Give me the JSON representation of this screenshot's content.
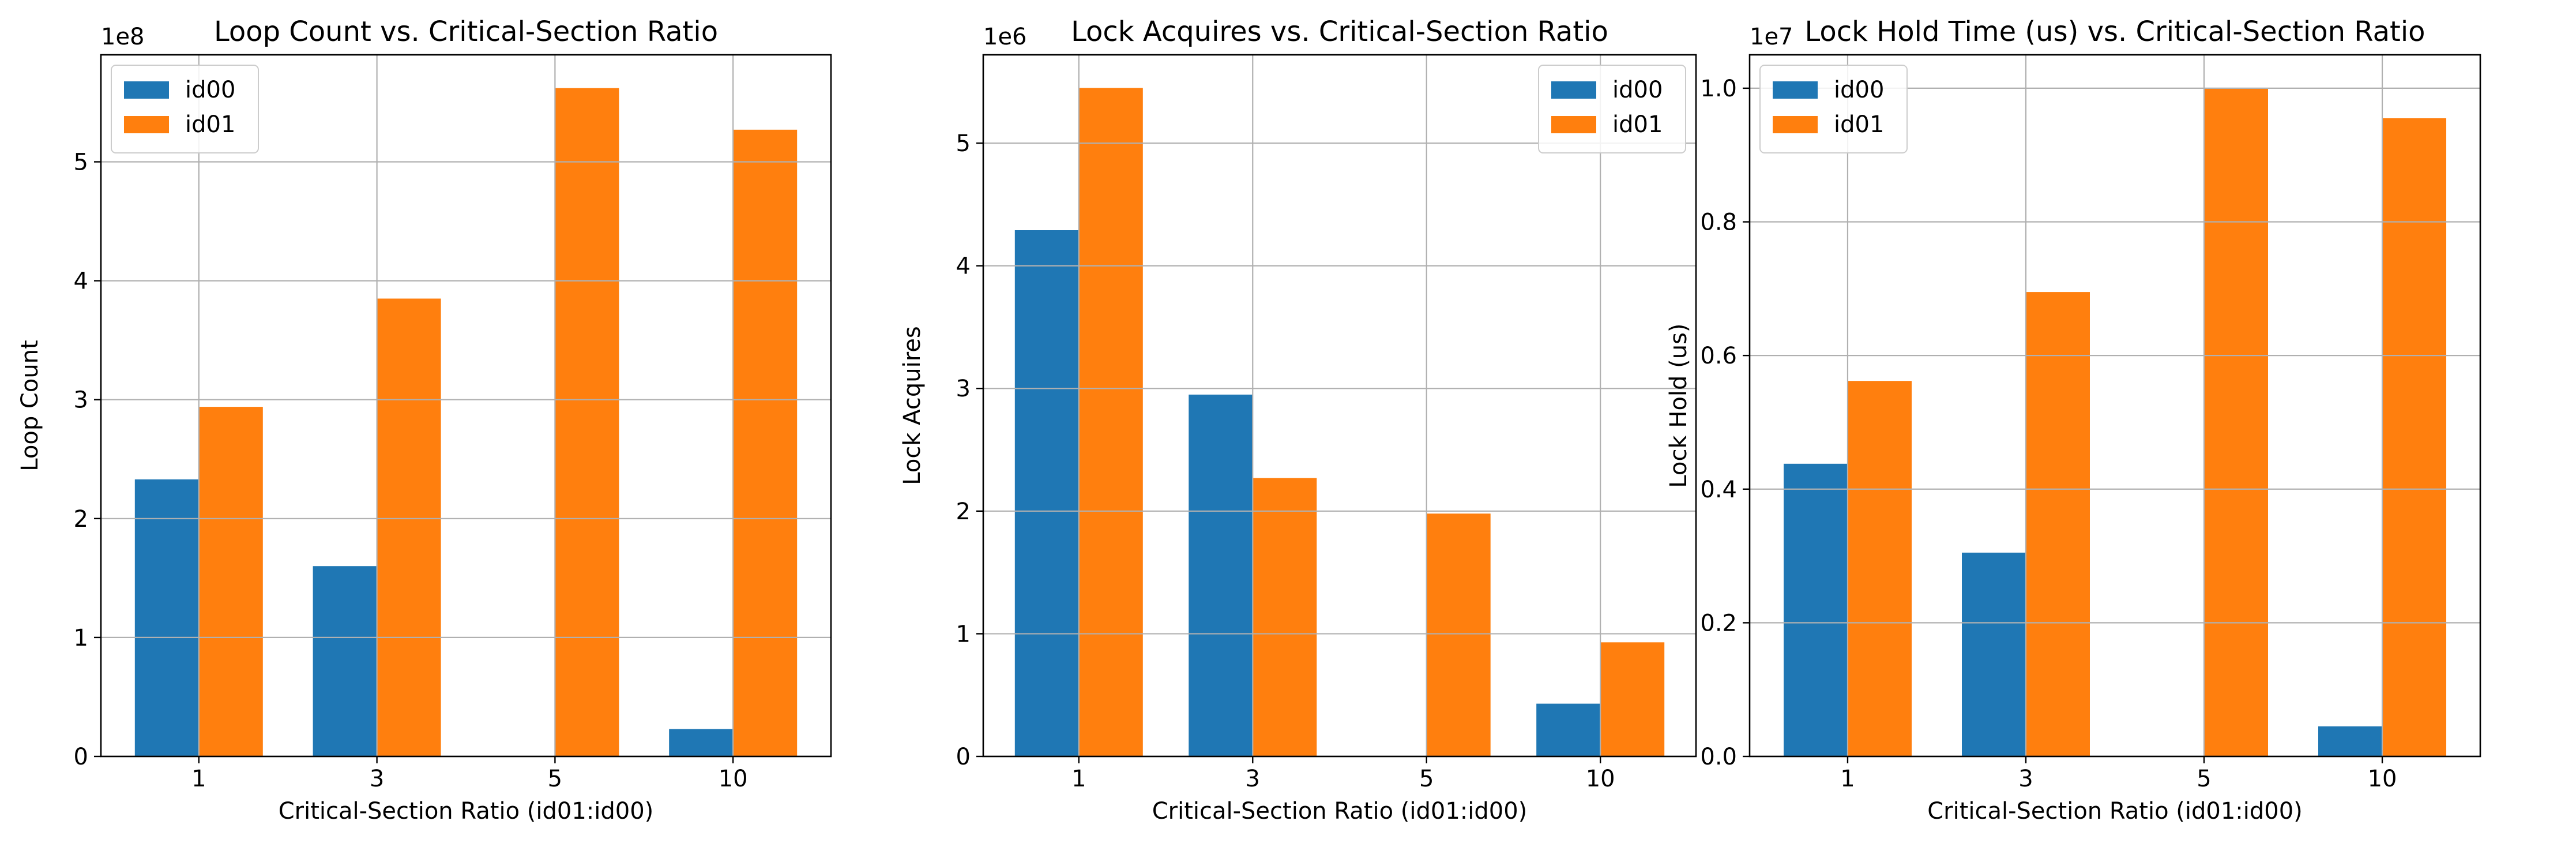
{
  "figure": {
    "colors": {
      "id00": "#1f77b4",
      "id01": "#ff7f0e",
      "grid": "#b0b0b0"
    }
  },
  "chart_data": [
    {
      "type": "bar",
      "title": "Loop Count vs. Critical-Section Ratio",
      "xlabel": "Critical-Section Ratio (id01:id00)",
      "ylabel": "Loop Count",
      "categories": [
        "1",
        "3",
        "5",
        "10"
      ],
      "offset_label": "1e8",
      "ylim": [
        0,
        5.9
      ],
      "yticks": [
        0,
        1,
        2,
        3,
        4,
        5
      ],
      "ytick_labels": [
        "0",
        "1",
        "2",
        "3",
        "4",
        "5"
      ],
      "legend": "top-left",
      "grid": true,
      "series": [
        {
          "name": "id00",
          "values": [
            2.33,
            1.6,
            0,
            0.23
          ]
        },
        {
          "name": "id01",
          "values": [
            2.94,
            3.85,
            5.62,
            5.27
          ]
        }
      ]
    },
    {
      "type": "bar",
      "title": "Lock Acquires vs. Critical-Section Ratio",
      "xlabel": "Critical-Section Ratio (id01:id00)",
      "ylabel": "Lock Acquires",
      "categories": [
        "1",
        "3",
        "5",
        "10"
      ],
      "offset_label": "1e6",
      "ylim": [
        0,
        5.72
      ],
      "yticks": [
        0,
        1,
        2,
        3,
        4,
        5
      ],
      "ytick_labels": [
        "0",
        "1",
        "2",
        "3",
        "4",
        "5"
      ],
      "legend": "top-right",
      "grid": true,
      "series": [
        {
          "name": "id00",
          "values": [
            4.29,
            2.95,
            0,
            0.43
          ]
        },
        {
          "name": "id01",
          "values": [
            5.45,
            2.27,
            1.98,
            0.93
          ]
        }
      ]
    },
    {
      "type": "bar",
      "title": "Lock Hold Time (us) vs. Critical-Section Ratio",
      "xlabel": "Critical-Section Ratio (id01:id00)",
      "ylabel": "Lock Hold (us)",
      "categories": [
        "1",
        "3",
        "5",
        "10"
      ],
      "offset_label": "1e7",
      "ylim": [
        0,
        1.05
      ],
      "yticks": [
        0,
        0.2,
        0.4,
        0.6,
        0.8,
        1.0
      ],
      "ytick_labels": [
        "0.0",
        "0.2",
        "0.4",
        "0.6",
        "0.8",
        "1.0"
      ],
      "legend": "top-left",
      "grid": true,
      "series": [
        {
          "name": "id00",
          "values": [
            0.438,
            0.305,
            0,
            0.045
          ]
        },
        {
          "name": "id01",
          "values": [
            0.562,
            0.695,
            1.0,
            0.955
          ]
        }
      ]
    }
  ]
}
